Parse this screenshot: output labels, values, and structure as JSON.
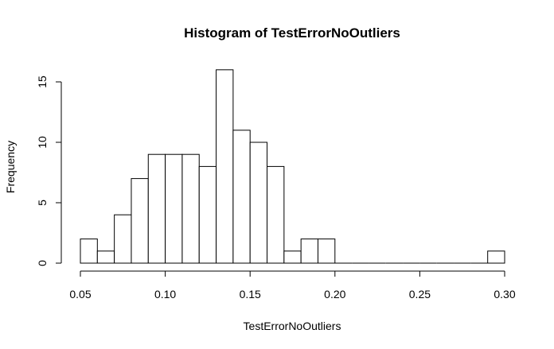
{
  "chart_data": {
    "type": "bar",
    "title": "Histogram of TestErrorNoOutliers",
    "xlabel": "TestErrorNoOutliers",
    "ylabel": "Frequency",
    "bin_width": 0.01,
    "bin_starts": [
      0.05,
      0.06,
      0.07,
      0.08,
      0.09,
      0.1,
      0.11,
      0.12,
      0.13,
      0.14,
      0.15,
      0.16,
      0.17,
      0.18,
      0.19,
      0.2,
      0.21,
      0.22,
      0.23,
      0.24,
      0.25,
      0.26,
      0.27,
      0.28,
      0.29
    ],
    "values": [
      2,
      1,
      4,
      7,
      9,
      9,
      9,
      8,
      16,
      11,
      10,
      8,
      1,
      2,
      2,
      0,
      0,
      0,
      0,
      0,
      0,
      0,
      0,
      0,
      1
    ],
    "xlim": [
      0.05,
      0.3
    ],
    "ylim": [
      0,
      16
    ],
    "x_ticks": [
      0.05,
      0.1,
      0.15,
      0.2,
      0.25,
      0.3
    ],
    "x_tick_labels": [
      "0.05",
      "0.10",
      "0.15",
      "0.20",
      "0.25",
      "0.30"
    ],
    "y_ticks": [
      0,
      5,
      10,
      15
    ],
    "y_tick_labels": [
      "0",
      "5",
      "10",
      "15"
    ],
    "grid": false,
    "legend": "none"
  }
}
